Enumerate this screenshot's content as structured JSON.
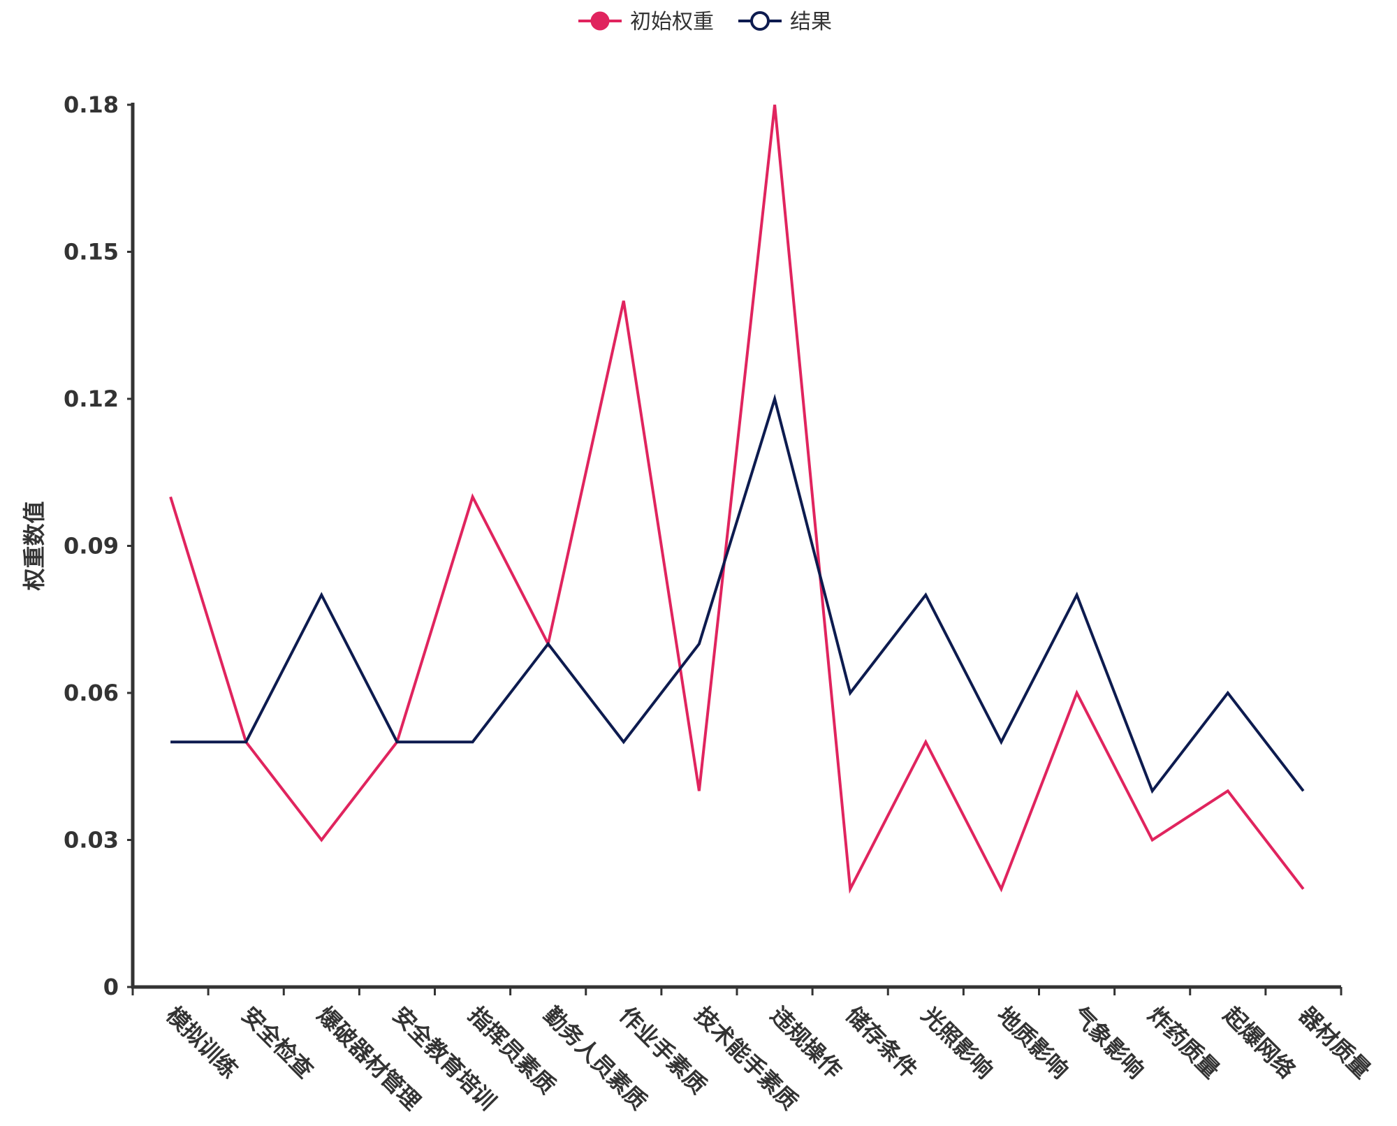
{
  "chart_data": {
    "type": "line",
    "title": "",
    "xlabel": "",
    "ylabel": "权重数值",
    "ylim": [
      0,
      0.18
    ],
    "yticks": [
      "0",
      "0.03",
      "0.06",
      "0.09",
      "0.12",
      "0.15",
      "0.18"
    ],
    "grid": false,
    "legend_position": "top-center",
    "categories": [
      "模拟训练",
      "安全检查",
      "爆破器材管理",
      "安全教育培训",
      "指挥员素质",
      "勤务人员素质",
      "作业手素质",
      "技术能手素质",
      "违规操作",
      "储存条件",
      "光照影响",
      "地质影响",
      "气象影响",
      "炸药质量",
      "起爆网络",
      "器材质量"
    ],
    "series": [
      {
        "name": "初始权重",
        "color": "#e0245e",
        "marker": "filled-circle",
        "values": [
          0.1,
          0.05,
          0.03,
          0.05,
          0.1,
          0.07,
          0.14,
          0.04,
          0.18,
          0.02,
          0.05,
          0.02,
          0.06,
          0.03,
          0.04,
          0.02
        ]
      },
      {
        "name": "结果",
        "color": "#0d1b4f",
        "marker": "hollow-circle",
        "values": [
          0.05,
          0.05,
          0.08,
          0.05,
          0.05,
          0.07,
          0.05,
          0.07,
          0.12,
          0.06,
          0.08,
          0.05,
          0.08,
          0.04,
          0.06,
          0.04
        ]
      }
    ]
  }
}
